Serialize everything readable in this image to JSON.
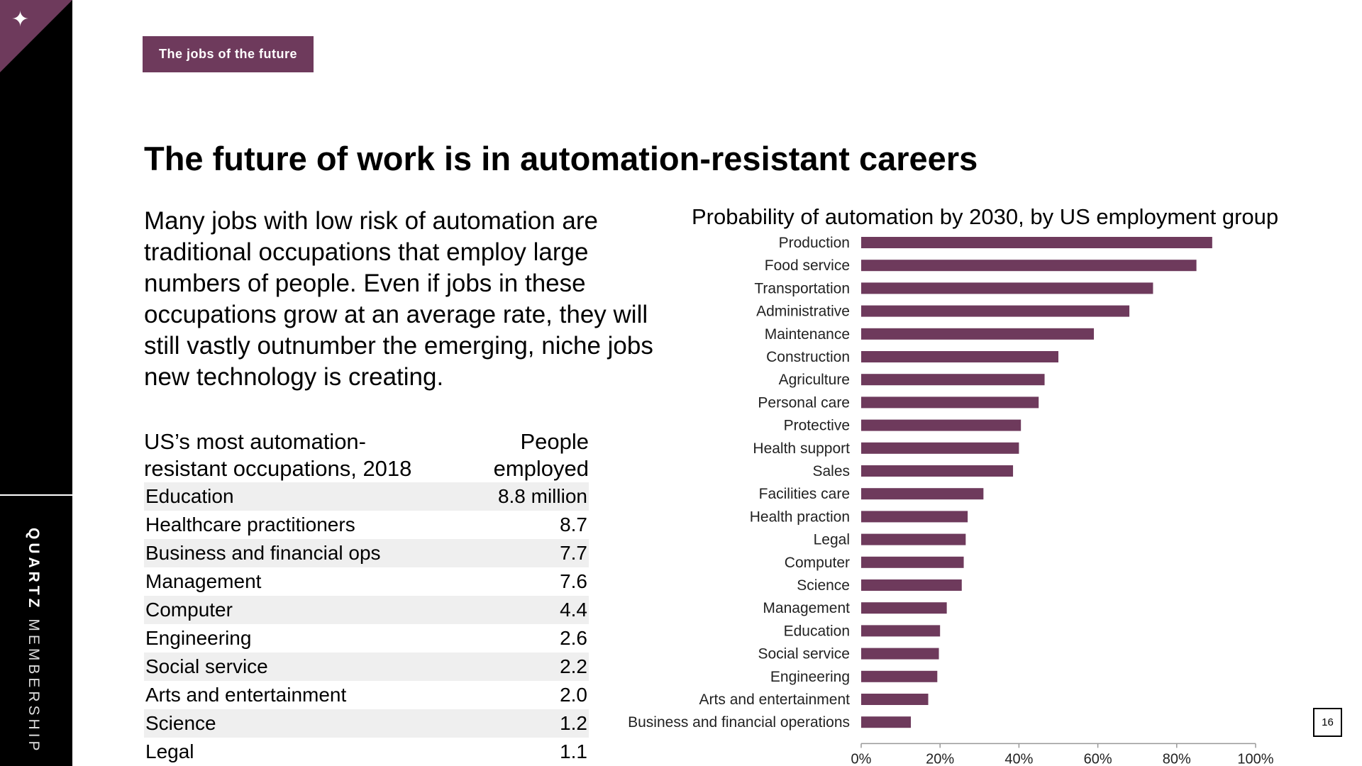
{
  "brand": {
    "bold": "QUARTZ",
    "light": "MEMBERSHIP"
  },
  "tag": "The jobs of the future",
  "title": "The future of work is in automation-resistant careers",
  "intro": "Many jobs with low risk of automation are traditional occupations that employ large numbers of people. Even if jobs in these occupations grow at an average rate, they will still vastly outnumber the emerging, niche jobs new technology is creating.",
  "table": {
    "header_left": "US’s most automation-resistant occupations, 2018",
    "header_right": "People employed",
    "rows": [
      {
        "label": "Education",
        "value": "8.8 million"
      },
      {
        "label": "Healthcare practitioners",
        "value": "8.7"
      },
      {
        "label": "Business and financial ops",
        "value": "7.7"
      },
      {
        "label": "Management",
        "value": "7.6"
      },
      {
        "label": "Computer",
        "value": "4.4"
      },
      {
        "label": "Engineering",
        "value": "2.6"
      },
      {
        "label": "Social service",
        "value": "2.2"
      },
      {
        "label": "Arts and entertainment",
        "value": "2.0"
      },
      {
        "label": "Science",
        "value": "1.2"
      },
      {
        "label": "Legal",
        "value": "1.1"
      }
    ]
  },
  "page_number": "16",
  "colors": {
    "accent": "#6e3a5c",
    "bar": "#6e3a5c"
  },
  "chart_data": {
    "type": "bar",
    "orientation": "horizontal",
    "title": "Probability of automation by 2030, by US employment group",
    "categories": [
      "Production",
      "Food service",
      "Transportation",
      "Administrative",
      "Maintenance",
      "Construction",
      "Agriculture",
      "Personal care",
      "Protective",
      "Health support",
      "Sales",
      "Facilities care",
      "Health praction",
      "Legal",
      "Computer",
      "Science",
      "Management",
      "Education",
      "Social service",
      "Engineering",
      "Arts and entertainment",
      "Business and financial operations"
    ],
    "values": [
      0.89,
      0.85,
      0.74,
      0.68,
      0.59,
      0.5,
      0.465,
      0.45,
      0.405,
      0.4,
      0.385,
      0.31,
      0.27,
      0.265,
      0.26,
      0.255,
      0.217,
      0.2,
      0.197,
      0.193,
      0.17,
      0.126
    ],
    "xlim": [
      0,
      1
    ],
    "xticks": [
      0,
      0.2,
      0.4,
      0.6,
      0.8,
      1.0
    ],
    "xtick_labels": [
      "0%",
      "20%",
      "40%",
      "60%",
      "80%",
      "100%"
    ],
    "grid": false,
    "legend": "none"
  }
}
